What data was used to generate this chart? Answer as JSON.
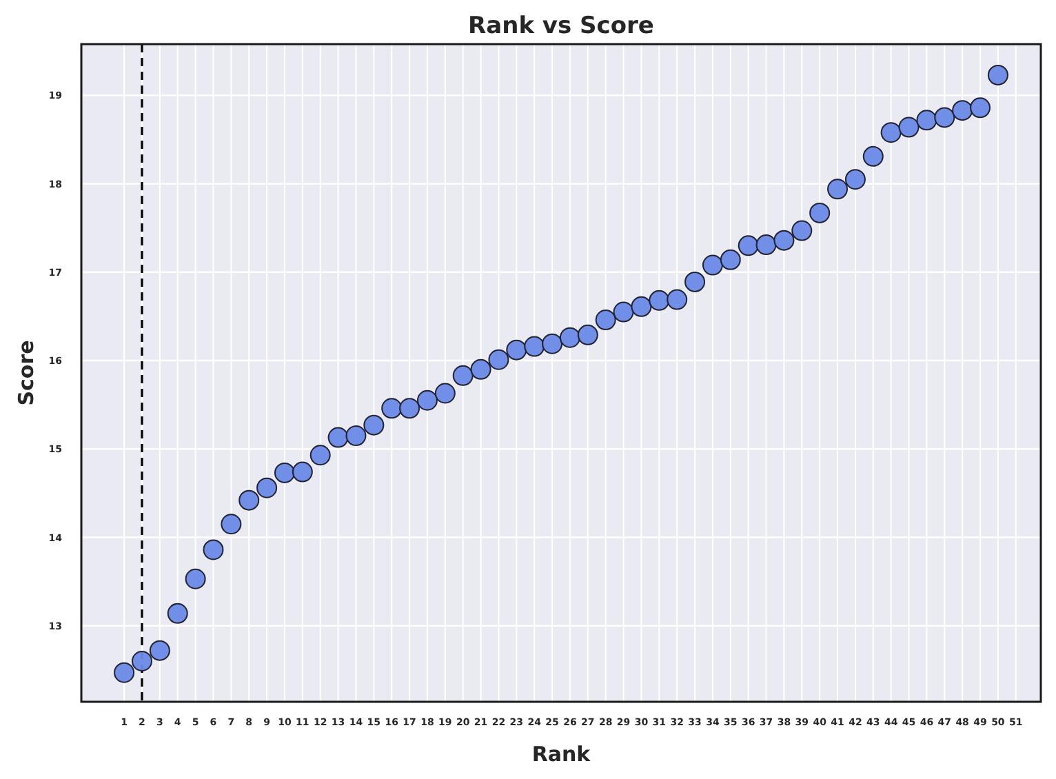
{
  "chart_data": {
    "type": "scatter",
    "title": "Rank vs Score",
    "xlabel": "Rank",
    "ylabel": "Score",
    "x": [
      1,
      2,
      3,
      4,
      5,
      6,
      7,
      8,
      9,
      10,
      11,
      12,
      13,
      14,
      15,
      16,
      17,
      18,
      19,
      20,
      21,
      22,
      23,
      24,
      25,
      26,
      27,
      28,
      29,
      30,
      31,
      32,
      33,
      34,
      35,
      36,
      37,
      38,
      39,
      40,
      41,
      42,
      43,
      44,
      45,
      46,
      47,
      48,
      49,
      50
    ],
    "series": [
      {
        "color": "#6a8ae6",
        "values": [
          12.47,
          12.6,
          12.72,
          13.14,
          13.53,
          13.86,
          14.15,
          14.42,
          14.56,
          14.73,
          14.74,
          14.93,
          15.13,
          15.15,
          15.27,
          15.46,
          15.46,
          15.55,
          15.63,
          15.83,
          15.9,
          16.01,
          16.12,
          16.16,
          16.19,
          16.26,
          16.29,
          16.46,
          16.55,
          16.61,
          16.68,
          16.69,
          16.89,
          17.08,
          17.14,
          17.3,
          17.31,
          17.36,
          17.47,
          17.67,
          17.94,
          18.05,
          18.31,
          18.58,
          18.64,
          18.72,
          18.75,
          18.83,
          18.86,
          19.23
        ]
      }
    ],
    "xlim": [
      -1.4,
      52.4
    ],
    "ylim": [
      12.14,
      19.58
    ],
    "xticks": [
      1,
      2,
      3,
      4,
      5,
      6,
      7,
      8,
      9,
      10,
      11,
      12,
      13,
      14,
      15,
      16,
      17,
      18,
      19,
      20,
      21,
      22,
      23,
      24,
      25,
      26,
      27,
      28,
      29,
      30,
      31,
      32,
      33,
      34,
      35,
      36,
      37,
      38,
      39,
      40,
      41,
      42,
      43,
      44,
      45,
      46,
      47,
      48,
      49,
      50,
      51
    ],
    "yticks": [
      13,
      14,
      15,
      16,
      17,
      18,
      19
    ],
    "ref_lines": [
      {
        "axis": "x",
        "value": 2,
        "color": "#000000",
        "line_style": "dashed"
      }
    ],
    "grid": true,
    "marker": "circle"
  }
}
